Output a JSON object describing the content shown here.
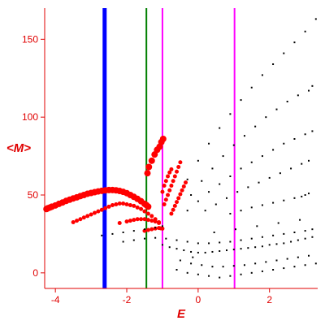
{
  "chart_data": {
    "type": "scatter",
    "title": "",
    "xlabel": "E",
    "ylabel": "<M>",
    "xlim": [
      -4.3,
      3.35
    ],
    "ylim": [
      -10,
      170
    ],
    "xticks": [
      -4,
      -2,
      0,
      2
    ],
    "xtick_labels": [
      "-4",
      "-2",
      "0",
      "2"
    ],
    "yticks": [
      0,
      50,
      100,
      150
    ],
    "ytick_labels": [
      "0",
      "50",
      "100",
      "150"
    ],
    "grid": false,
    "legend": "none",
    "colors": {
      "axis": "#e00000",
      "red_points": "#ff0000",
      "black_points": "#000000",
      "blue_line": "#0000ff",
      "green_line": "#008000",
      "magenta_line": "#ff00ff"
    },
    "vertical_lines": [
      {
        "x": -2.62,
        "color": "#0000ff",
        "width": 5
      },
      {
        "x": -1.45,
        "color": "#008000",
        "width": 2
      },
      {
        "x": -1.0,
        "color": "#ff00ff",
        "width": 2
      },
      {
        "x": 1.02,
        "color": "#ff00ff",
        "width": 2
      }
    ],
    "series": [
      {
        "color": "#ff0000",
        "marker": "large-red",
        "x": [
          -4.25,
          -4.21,
          -4.15,
          -4.1,
          -4.0,
          -3.9,
          -3.8,
          -3.7,
          -3.6,
          -3.5,
          -3.4,
          -3.3,
          -3.2,
          -3.1,
          -3.0,
          -2.9,
          -2.8,
          -2.7,
          -2.6,
          -2.5,
          -2.4,
          -2.3,
          -2.2,
          -2.1,
          -2.0,
          -1.9,
          -1.8,
          -1.7,
          -1.6,
          -1.5,
          -1.45,
          -1.4
        ],
        "y": [
          41.0,
          41.5,
          42.0,
          42.5,
          43.3,
          44.3,
          45.2,
          46.2,
          47.0,
          47.8,
          48.5,
          49.3,
          50.0,
          50.8,
          51.3,
          51.8,
          52.3,
          52.7,
          53.0,
          53.2,
          53.2,
          53.0,
          52.6,
          52.0,
          51.2,
          50.0,
          48.8,
          47.5,
          46.0,
          44.3,
          43.5,
          42.5
        ]
      },
      {
        "color": "#ff0000",
        "marker": "red",
        "x": [
          -3.5,
          -3.4,
          -3.3,
          -3.2,
          -3.1,
          -3.0,
          -2.9,
          -2.8,
          -2.7,
          -2.6,
          -2.5,
          -2.4,
          -2.3,
          -2.2,
          -2.1,
          -2.0,
          -1.9,
          -1.8,
          -1.7,
          -1.6,
          -1.5,
          -1.4,
          -1.3,
          -1.2,
          -1.1
        ],
        "y": [
          32.5,
          33.5,
          34.5,
          35.5,
          36.5,
          37.5,
          38.5,
          39.5,
          40.5,
          41.5,
          42.5,
          43.5,
          44.0,
          44.5,
          44.5,
          44.0,
          43.5,
          43.0,
          42.0,
          41.0,
          39.5,
          38.0,
          36.5,
          34.5,
          32.5
        ]
      },
      {
        "color": "#ff0000",
        "marker": "red",
        "x": [
          -2.2,
          -2.0,
          -1.9,
          -1.8,
          -1.7,
          -1.6,
          -1.5,
          -1.4,
          -1.3,
          -1.2,
          -1.1
        ],
        "y": [
          32.0,
          33.0,
          33.5,
          34.0,
          34.5,
          34.5,
          34.5,
          34.0,
          33.5,
          33.0,
          32.0
        ]
      },
      {
        "color": "#ff0000",
        "marker": "red",
        "x": [
          -1.5,
          -1.4,
          -1.3,
          -1.2,
          -1.1,
          -1.05,
          -1.0
        ],
        "y": [
          27.0,
          27.5,
          28.0,
          28.5,
          28.8,
          28.6,
          28.4
        ]
      },
      {
        "color": "#ff0000",
        "marker": "large-red",
        "x": [
          -1.42,
          -1.38,
          -1.3,
          -1.22,
          -1.15,
          -1.08,
          -1.03,
          -0.98
        ],
        "y": [
          64.0,
          68.0,
          72.0,
          76.0,
          79.0,
          81.0,
          84.0,
          86.0
        ]
      },
      {
        "color": "#ff0000",
        "marker": "red",
        "x": [
          -1.0,
          -0.95,
          -0.9,
          -0.85,
          -0.8,
          -0.75
        ],
        "y": [
          52.0,
          56.0,
          59.0,
          62.0,
          64.5,
          66.5
        ]
      },
      {
        "color": "#ff0000",
        "marker": "red",
        "x": [
          -0.95,
          -0.9,
          -0.85,
          -0.8,
          -0.75,
          -0.7,
          -0.65,
          -0.6,
          -0.55,
          -0.5
        ],
        "y": [
          44.0,
          47.0,
          50.0,
          53.0,
          56.0,
          59.0,
          62.0,
          65.0,
          68.0,
          71.0
        ]
      },
      {
        "color": "#ff0000",
        "marker": "red",
        "x": [
          -0.75,
          -0.7,
          -0.65,
          -0.6,
          -0.55,
          -0.5,
          -0.45,
          -0.4,
          -0.35
        ],
        "y": [
          38.0,
          40.5,
          43.0,
          45.5,
          48.0,
          50.5,
          53.0,
          55.5,
          58.0
        ]
      },
      {
        "color": "#000000",
        "marker": "black",
        "x": [
          -0.3,
          0.0,
          0.3,
          0.6,
          0.9,
          1.2,
          1.5,
          1.8,
          2.1,
          2.4,
          2.7,
          3.0,
          3.3
        ],
        "y": [
          60.0,
          72.0,
          83.0,
          93.0,
          102.0,
          111.0,
          119.0,
          127.0,
          134.0,
          141.0,
          148.0,
          155.0,
          163.0
        ]
      },
      {
        "color": "#000000",
        "marker": "black",
        "x": [
          -0.2,
          0.1,
          0.4,
          0.7,
          1.0,
          1.3,
          1.6,
          1.9,
          2.2,
          2.5,
          2.8,
          3.1,
          3.2
        ],
        "y": [
          50.0,
          59.0,
          67.0,
          75.0,
          82.0,
          88.0,
          94.0,
          100.0,
          105.0,
          110.0,
          114.0,
          117.0,
          120.0
        ]
      },
      {
        "color": "#000000",
        "marker": "black",
        "x": [
          -0.3,
          0.0,
          0.3,
          0.6,
          0.9,
          1.2,
          1.5,
          1.8,
          2.1,
          2.4,
          2.7,
          3.0,
          3.2
        ],
        "y": [
          40.0,
          46.0,
          52.0,
          57.0,
          62.0,
          67.0,
          71.0,
          75.0,
          79.0,
          83.0,
          86.0,
          89.0,
          91.0
        ]
      },
      {
        "color": "#000000",
        "marker": "black",
        "x": [
          0.2,
          0.5,
          0.8,
          1.1,
          1.4,
          1.7,
          2.0,
          2.3,
          2.6,
          2.9,
          3.1
        ],
        "y": [
          40.0,
          44.0,
          48.0,
          52.0,
          55.0,
          58.0,
          61.0,
          64.0,
          67.0,
          70.0,
          72.0
        ]
      },
      {
        "color": "#000000",
        "marker": "black",
        "x": [
          0.9,
          1.2,
          1.5,
          1.8,
          2.1,
          2.4,
          2.7,
          2.9,
          3.0,
          3.1
        ],
        "y": [
          38.0,
          40.0,
          42.0,
          43.5,
          45.0,
          46.5,
          48.0,
          49.0,
          50.0,
          51.0
        ]
      },
      {
        "color": "#000000",
        "marker": "black",
        "x": [
          -2.7,
          -2.4,
          -2.1,
          -1.8,
          -1.5,
          -1.2,
          -1.0
        ],
        "y": [
          24.0,
          25.0,
          26.0,
          27.0,
          28.0,
          29.0,
          30.0
        ]
      },
      {
        "color": "#000000",
        "marker": "black",
        "x": [
          -2.1,
          -1.8,
          -1.5,
          -1.2,
          -0.9,
          -0.6,
          -0.3,
          0.0,
          0.3,
          0.6,
          0.9,
          1.2,
          1.5,
          1.8,
          2.1,
          2.4,
          2.7,
          3.0,
          3.2
        ],
        "y": [
          20.0,
          21.0,
          22.0,
          22.5,
          22.0,
          21.0,
          20.0,
          19.0,
          19.0,
          19.5,
          20.0,
          21.0,
          22.0,
          23.0,
          24.0,
          25.0,
          26.0,
          27.0,
          28.0
        ]
      },
      {
        "color": "#000000",
        "marker": "black",
        "x": [
          -1.0,
          -0.8,
          -0.6,
          -0.4,
          -0.2,
          0.0,
          0.2,
          0.4,
          0.6,
          0.8,
          1.0,
          1.2,
          1.4,
          1.6,
          1.8,
          2.0,
          2.2,
          2.4,
          2.6,
          2.8,
          3.0,
          3.2
        ],
        "y": [
          18.0,
          16.5,
          15.5,
          14.5,
          13.5,
          13.0,
          13.0,
          13.5,
          14.0,
          14.5,
          15.0,
          15.5,
          16.0,
          16.5,
          17.0,
          18.0,
          18.5,
          19.0,
          20.0,
          21.0,
          22.0,
          23.0
        ]
      },
      {
        "color": "#000000",
        "marker": "black",
        "x": [
          -0.5,
          -0.2,
          0.1,
          0.4,
          0.7,
          1.0,
          1.3,
          1.6,
          1.9,
          2.2,
          2.5,
          2.8,
          3.1
        ],
        "y": [
          8.0,
          6.0,
          5.0,
          4.0,
          4.0,
          4.5,
          5.0,
          6.0,
          7.0,
          8.0,
          9.0,
          10.0,
          11.0
        ]
      },
      {
        "color": "#000000",
        "marker": "black",
        "x": [
          -0.6,
          -0.3,
          0.0,
          0.3,
          0.6,
          0.9,
          1.2,
          1.5,
          1.8,
          2.1,
          2.4,
          2.7,
          3.0,
          3.3,
          0.45,
          1.05,
          1.65,
          2.25,
          2.85,
          -0.15
        ],
        "y": [
          2.0,
          0.0,
          -1.0,
          -2.0,
          -3.0,
          -2.0,
          -1.0,
          0.0,
          1.0,
          2.0,
          3.0,
          4.0,
          5.0,
          6.0,
          26.0,
          28.0,
          30.0,
          32.0,
          34.0,
          10.0
        ]
      }
    ]
  }
}
